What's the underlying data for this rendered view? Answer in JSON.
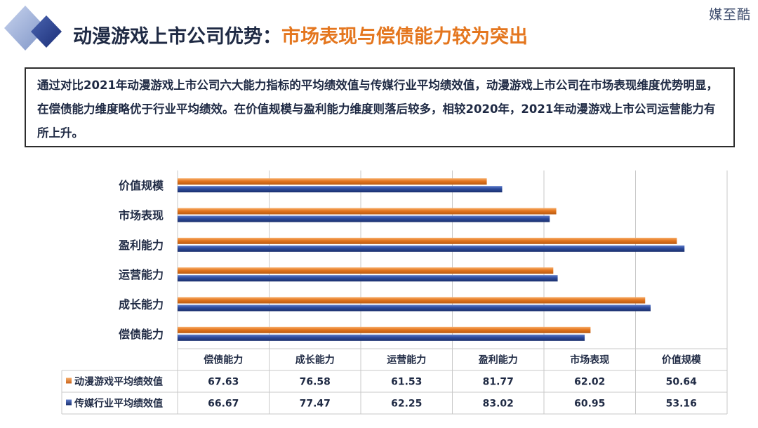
{
  "header": {
    "title_main": "动漫游戏上市公司优势：",
    "title_highlight": "市场表现与偿债能力较为突出",
    "brand": "媒至酷"
  },
  "summary": {
    "text": "通过对比2021年动漫游戏上市公司六大能力指标的平均绩效值与传媒行业平均绩效值，动漫游戏上市公司在市场表现维度优势明显，在偿债能力维度略优于行业平均绩效。在价值规模与盈利能力维度则落后较多，相较2020年，2021年动漫游戏上市公司运营能力有所上升。"
  },
  "colors": {
    "series_orange": "#e4761e",
    "series_blue": "#2b4a9c",
    "grid": "#c9c9c9",
    "text": "#1f2a44"
  },
  "chart_data": {
    "type": "bar",
    "orientation": "horizontal",
    "categories": [
      "偿债能力",
      "成长能力",
      "运营能力",
      "盈利能力",
      "市场表现",
      "价值规模"
    ],
    "series": [
      {
        "name": "动漫游戏平均绩效值",
        "values": [
          67.63,
          76.58,
          61.53,
          81.77,
          62.02,
          50.64
        ]
      },
      {
        "name": "传媒行业平均绩效值",
        "values": [
          66.67,
          77.47,
          62.25,
          83.02,
          60.95,
          53.16
        ]
      }
    ],
    "xlim": [
      0,
      90
    ],
    "grid": true,
    "data_table": true
  }
}
